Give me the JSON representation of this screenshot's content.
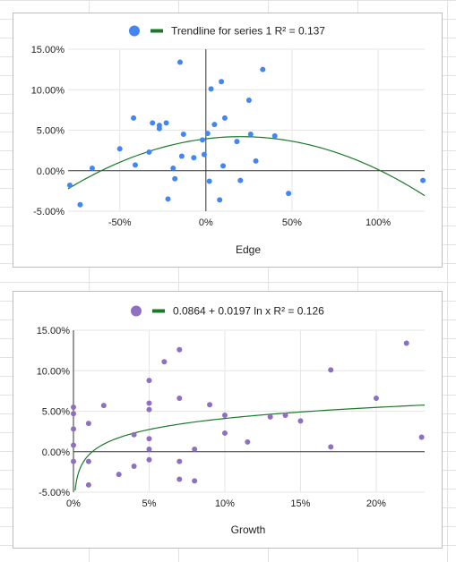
{
  "chart_data": [
    {
      "type": "scatter",
      "xlabel": "Edge",
      "ylabel": "",
      "xlim": [
        -0.8,
        1.27
      ],
      "ylim": [
        -0.05,
        0.15
      ],
      "x_ticks": [
        -0.5,
        0,
        0.5,
        1.0
      ],
      "x_tick_labels": [
        "-50%",
        "0%",
        "50%",
        "100%"
      ],
      "y_ticks": [
        -0.05,
        0,
        0.05,
        0.1,
        0.15
      ],
      "y_tick_labels": [
        "-5.00%",
        "0.00%",
        "5.00%",
        "10.00%",
        "15.00%"
      ],
      "grid": true,
      "legend_position": "top",
      "series": [
        {
          "color": "#4285f4",
          "points": [
            [
              -0.79,
              -0.018
            ],
            [
              -0.73,
              -0.042
            ],
            [
              -0.66,
              0.003
            ],
            [
              -0.5,
              0.027
            ],
            [
              -0.42,
              0.065
            ],
            [
              -0.41,
              0.007
            ],
            [
              -0.33,
              0.023
            ],
            [
              -0.31,
              0.059
            ],
            [
              -0.27,
              0.056
            ],
            [
              -0.27,
              0.052
            ],
            [
              -0.23,
              0.059
            ],
            [
              -0.22,
              -0.035
            ],
            [
              -0.19,
              0.003
            ],
            [
              -0.18,
              -0.01
            ],
            [
              -0.15,
              0.134
            ],
            [
              -0.14,
              0.018
            ],
            [
              -0.13,
              0.045
            ],
            [
              -0.07,
              0.016
            ],
            [
              -0.02,
              0.038
            ],
            [
              -0.01,
              0.02
            ],
            [
              0.01,
              0.046
            ],
            [
              0.02,
              -0.013
            ],
            [
              0.03,
              0.101
            ],
            [
              0.05,
              0.057
            ],
            [
              0.08,
              -0.036
            ],
            [
              0.09,
              0.11
            ],
            [
              0.1,
              0.006
            ],
            [
              0.11,
              0.065
            ],
            [
              0.18,
              0.036
            ],
            [
              0.2,
              -0.012
            ],
            [
              0.25,
              0.087
            ],
            [
              0.26,
              0.045
            ],
            [
              0.29,
              0.012
            ],
            [
              0.33,
              0.125
            ],
            [
              0.4,
              0.043
            ],
            [
              0.48,
              -0.028
            ],
            [
              1.26,
              -0.012
            ]
          ]
        }
      ],
      "trendline": {
        "kind": "polynomial",
        "coefficients": [
          0.0394,
          0.026,
          -0.064
        ],
        "label": "Trendline for series 1 R² = 0.137",
        "color": "#1b7a2a"
      }
    },
    {
      "type": "scatter",
      "xlabel": "Growth",
      "ylabel": "",
      "xlim": [
        0,
        0.232
      ],
      "ylim": [
        -0.05,
        0.15
      ],
      "x_ticks": [
        0,
        0.05,
        0.1,
        0.15,
        0.2
      ],
      "x_tick_labels": [
        "0%",
        "5%",
        "10%",
        "15%",
        "20%"
      ],
      "y_ticks": [
        -0.05,
        0,
        0.05,
        0.1,
        0.15
      ],
      "y_tick_labels": [
        "-5.00%",
        "0.00%",
        "5.00%",
        "10.00%",
        "15.00%"
      ],
      "grid": true,
      "legend_position": "top",
      "series": [
        {
          "color": "#8e6fc1",
          "points": [
            [
              0.0,
              0.055
            ],
            [
              0.0,
              0.047
            ],
            [
              0.0,
              0.028
            ],
            [
              0.0,
              0.008
            ],
            [
              0.0,
              -0.012
            ],
            [
              0.01,
              -0.012
            ],
            [
              0.01,
              0.035
            ],
            [
              0.01,
              -0.041
            ],
            [
              0.02,
              0.057
            ],
            [
              0.03,
              -0.028
            ],
            [
              0.04,
              -0.018
            ],
            [
              0.04,
              0.021
            ],
            [
              0.05,
              0.088
            ],
            [
              0.05,
              0.06
            ],
            [
              0.05,
              0.052
            ],
            [
              0.05,
              0.016
            ],
            [
              0.05,
              0.003
            ],
            [
              0.05,
              -0.01
            ],
            [
              0.06,
              0.111
            ],
            [
              0.07,
              0.126
            ],
            [
              0.07,
              0.066
            ],
            [
              0.07,
              -0.012
            ],
            [
              0.07,
              -0.034
            ],
            [
              0.08,
              0.003
            ],
            [
              0.08,
              -0.036
            ],
            [
              0.09,
              0.058
            ],
            [
              0.1,
              0.045
            ],
            [
              0.1,
              0.023
            ],
            [
              0.115,
              0.012
            ],
            [
              0.13,
              0.043
            ],
            [
              0.14,
              0.045
            ],
            [
              0.15,
              0.038
            ],
            [
              0.17,
              0.101
            ],
            [
              0.17,
              0.006
            ],
            [
              0.2,
              0.066
            ],
            [
              0.22,
              0.134
            ],
            [
              0.23,
              0.018
            ]
          ]
        }
      ],
      "trendline": {
        "kind": "logarithmic",
        "a": 0.0864,
        "b": 0.0197,
        "label": "0.0864 + 0.0197 ln x R² = 0.126",
        "color": "#1b7a2a"
      }
    }
  ]
}
